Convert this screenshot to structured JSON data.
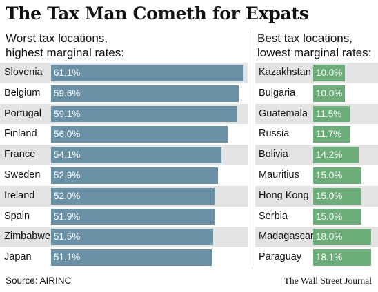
{
  "title": "The Tax Man Cometh for Expats",
  "source": "Source: AIRINC",
  "credit": "The Wall Street Journal",
  "colors": {
    "worst_bar": "#6a90a6",
    "best_bar": "#6cad79",
    "stripe": "#e3e3e3"
  },
  "chart_data": [
    {
      "type": "bar",
      "orientation": "horizontal",
      "title": "Worst tax locations,\nhighest marginal rates:",
      "categories": [
        "Slovenia",
        "Belgium",
        "Portugal",
        "Finland",
        "France",
        "Sweden",
        "Ireland",
        "Spain",
        "Zimbabwe",
        "Japan"
      ],
      "values": [
        61.1,
        59.6,
        59.1,
        56.0,
        54.1,
        52.9,
        52.0,
        51.9,
        51.5,
        51.1
      ],
      "labels": [
        "61.1%",
        "59.6%",
        "59.1%",
        "56.0%",
        "54.1%",
        "52.9%",
        "52.0%",
        "51.9%",
        "51.5%",
        "51.1%"
      ],
      "unit": "%"
    },
    {
      "type": "bar",
      "orientation": "horizontal",
      "title": "Best tax locations,\nlowest marginal rates:",
      "categories": [
        "Kazakhstan",
        "Bulgaria",
        "Guatemala",
        "Russia",
        "Bolivia",
        "Mauritius",
        "Hong Kong",
        "Serbia",
        "Madagascar",
        "Paraguay"
      ],
      "values": [
        10.0,
        10.0,
        11.5,
        11.7,
        14.2,
        15.0,
        15.0,
        15.0,
        18.0,
        18.1
      ],
      "labels": [
        "10.0%",
        "10.0%",
        "11.5%",
        "11.7%",
        "14.2%",
        "15.0%",
        "15.0%",
        "15.0%",
        "18.0%",
        "18.1%"
      ],
      "unit": "%"
    }
  ]
}
